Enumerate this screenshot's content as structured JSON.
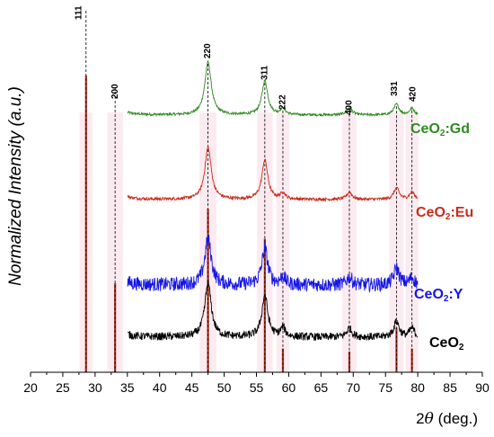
{
  "chart_data": {
    "type": "line",
    "ylabel": "Normalized Intensity (a.u.)",
    "xlabel": {
      "prefix": "2",
      "symbol": "θ",
      "suffix": " (deg.)"
    },
    "xlim": [
      20,
      90
    ],
    "xticks": [
      "20",
      "25",
      "30",
      "35",
      "40",
      "45",
      "50",
      "55",
      "60",
      "65",
      "70",
      "75",
      "80",
      "85",
      "90"
    ],
    "peaks": [
      {
        "hkl": "111",
        "x": 28.6
      },
      {
        "hkl": "200",
        "x": 33.1
      },
      {
        "hkl": "220",
        "x": 47.5
      },
      {
        "hkl": "311",
        "x": 56.3
      },
      {
        "hkl": "222",
        "x": 59.1
      },
      {
        "hkl": "400",
        "x": 69.4
      },
      {
        "hkl": "331",
        "x": 76.7
      },
      {
        "hkl": "420",
        "x": 79.1
      }
    ],
    "reference_sticks": [
      {
        "x": 28.6,
        "value": 1.0
      },
      {
        "x": 33.1,
        "value": 0.3
      },
      {
        "x": 47.5,
        "value": 0.55
      },
      {
        "x": 56.3,
        "value": 0.45
      },
      {
        "x": 59.1,
        "value": 0.08
      },
      {
        "x": 69.4,
        "value": 0.07
      },
      {
        "x": 76.7,
        "value": 0.15
      },
      {
        "x": 79.1,
        "value": 0.08
      }
    ],
    "series": [
      {
        "name": "CeO2:Gd",
        "label_main": "CeO",
        "label_sub": "2",
        "label_suffix": ":Gd",
        "color": "#2e8b20",
        "noise": 0.012,
        "peak_heights": [
          1.0,
          0.28,
          0.5,
          0.32,
          0.06,
          0.07,
          0.1,
          0.06
        ]
      },
      {
        "name": "CeO2:Eu",
        "label_main": "CeO",
        "label_sub": "2",
        "label_suffix": ":Eu",
        "color": "#cc2a1a",
        "noise": 0.015,
        "peak_heights": [
          1.0,
          0.32,
          0.5,
          0.38,
          0.06,
          0.07,
          0.11,
          0.07
        ]
      },
      {
        "name": "CeO2:Y",
        "label_main": "CeO",
        "label_sub": "2",
        "label_suffix": ":Y",
        "color": "#1515e6",
        "noise": 0.07,
        "peak_heights": [
          1.0,
          0.31,
          0.46,
          0.36,
          0.08,
          0.08,
          0.17,
          0.07
        ]
      },
      {
        "name": "CeO2",
        "label_main": "CeO",
        "label_sub": "2",
        "label_suffix": "",
        "color": "#000000",
        "noise": 0.045,
        "peak_heights": [
          1.0,
          0.38,
          0.62,
          0.48,
          0.1,
          0.1,
          0.18,
          0.1
        ]
      }
    ],
    "reference_color": "#b03020",
    "grid": false,
    "legend": "right, next to each curve"
  }
}
